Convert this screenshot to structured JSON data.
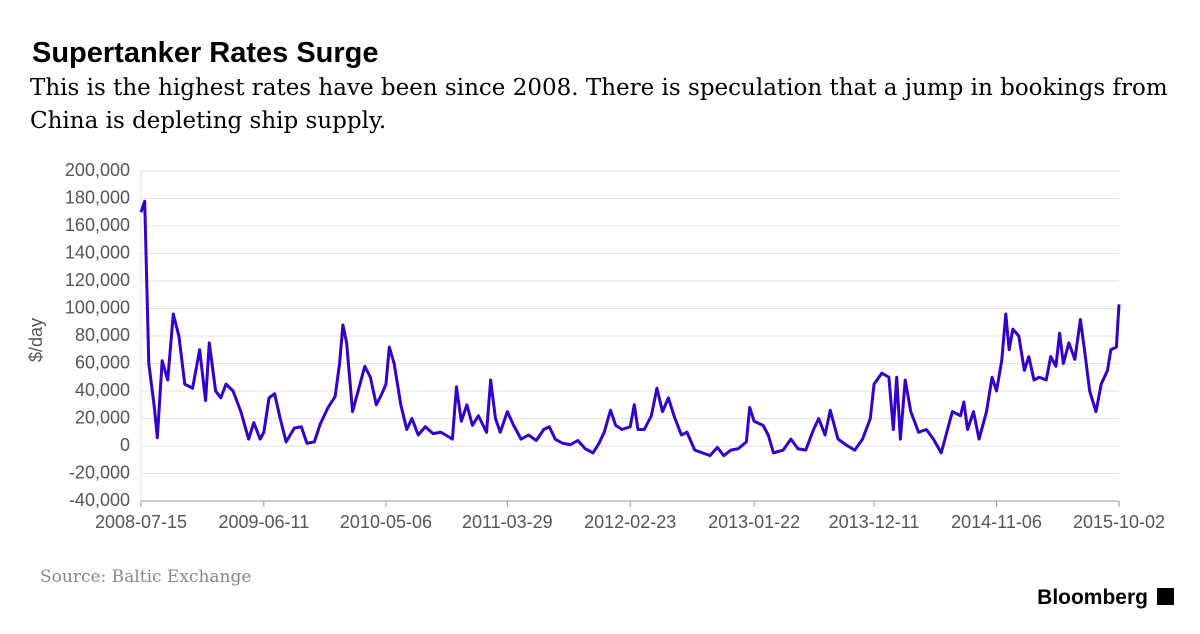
{
  "chart_data": {
    "type": "line",
    "title": "Supertanker Rates Surge",
    "subtitle": "This is the highest rates have been since 2008. There is speculation that a jump in bookings from China is depleting ship supply.",
    "y_label": "$/day",
    "source": "Source: Baltic Exchange",
    "brand": "Bloomberg",
    "color": "#3300cc",
    "grid": true,
    "x": [
      "2008-07-15",
      "2008-07-25",
      "2008-08-05",
      "2008-08-20",
      "2008-08-28",
      "2008-09-10",
      "2008-09-25",
      "2008-10-10",
      "2008-10-25",
      "2008-11-10",
      "2008-12-01",
      "2008-12-20",
      "2009-01-05",
      "2009-01-15",
      "2009-02-01",
      "2009-02-15",
      "2009-03-01",
      "2009-03-20",
      "2009-04-10",
      "2009-05-01",
      "2009-05-15",
      "2009-06-01",
      "2009-06-11",
      "2009-06-25",
      "2009-07-10",
      "2009-07-25",
      "2009-08-10",
      "2009-09-01",
      "2009-09-20",
      "2009-10-05",
      "2009-10-25",
      "2009-11-10",
      "2009-12-01",
      "2009-12-20",
      "2010-01-01",
      "2010-01-10",
      "2010-01-20",
      "2010-02-05",
      "2010-02-20",
      "2010-03-10",
      "2010-03-25",
      "2010-04-10",
      "2010-04-25",
      "2010-05-06",
      "2010-05-15",
      "2010-05-28",
      "2010-06-15",
      "2010-07-01",
      "2010-07-15",
      "2010-08-01",
      "2010-08-20",
      "2010-09-10",
      "2010-10-01",
      "2010-10-20",
      "2010-11-01",
      "2010-11-12",
      "2010-11-25",
      "2010-12-10",
      "2010-12-25",
      "2011-01-10",
      "2011-02-01",
      "2011-02-12",
      "2011-02-25",
      "2011-03-10",
      "2011-03-29",
      "2011-04-15",
      "2011-05-05",
      "2011-05-25",
      "2011-06-15",
      "2011-07-05",
      "2011-07-20",
      "2011-08-05",
      "2011-08-25",
      "2011-09-15",
      "2011-10-05",
      "2011-10-25",
      "2011-11-15",
      "2011-12-01",
      "2011-12-15",
      "2012-01-01",
      "2012-01-15",
      "2012-02-01",
      "2012-02-23",
      "2012-03-05",
      "2012-03-15",
      "2012-04-01",
      "2012-04-20",
      "2012-05-05",
      "2012-05-20",
      "2012-06-05",
      "2012-06-20",
      "2012-07-10",
      "2012-07-25",
      "2012-08-15",
      "2012-09-05",
      "2012-09-25",
      "2012-10-15",
      "2012-11-01",
      "2012-11-20",
      "2012-12-10",
      "2013-01-01",
      "2013-01-10",
      "2013-01-22",
      "2013-02-15",
      "2013-03-01",
      "2013-03-15",
      "2013-04-10",
      "2013-05-01",
      "2013-05-20",
      "2013-06-10",
      "2013-07-01",
      "2013-07-15",
      "2013-08-01",
      "2013-08-15",
      "2013-09-05",
      "2013-10-01",
      "2013-10-20",
      "2013-11-10",
      "2013-12-01",
      "2013-12-11",
      "2014-01-01",
      "2014-01-20",
      "2014-02-01",
      "2014-02-10",
      "2014-02-20",
      "2014-03-05",
      "2014-03-20",
      "2014-04-10",
      "2014-05-01",
      "2014-05-20",
      "2014-06-10",
      "2014-06-25",
      "2014-07-10",
      "2014-08-01",
      "2014-08-10",
      "2014-08-20",
      "2014-09-05",
      "2014-09-20",
      "2014-10-10",
      "2014-10-25",
      "2014-11-06",
      "2014-11-20",
      "2014-12-01",
      "2014-12-10",
      "2014-12-20",
      "2015-01-05",
      "2015-01-20",
      "2015-02-01",
      "2015-02-15",
      "2015-03-01",
      "2015-03-20",
      "2015-04-01",
      "2015-04-15",
      "2015-04-25",
      "2015-05-05",
      "2015-05-20",
      "2015-06-05",
      "2015-06-20",
      "2015-07-01",
      "2015-07-15",
      "2015-08-01",
      "2015-08-15",
      "2015-09-01",
      "2015-09-10",
      "2015-09-25",
      "2015-10-02"
    ],
    "values": [
      170000,
      178000,
      60000,
      28000,
      6000,
      62000,
      48000,
      96000,
      80000,
      45000,
      42000,
      70000,
      33000,
      75000,
      40000,
      35000,
      45000,
      40000,
      25000,
      5000,
      17000,
      5000,
      10000,
      35000,
      38000,
      20000,
      3000,
      13000,
      14000,
      2000,
      3000,
      16000,
      28000,
      36000,
      60000,
      88000,
      75000,
      25000,
      40000,
      58000,
      50000,
      30000,
      38000,
      45000,
      72000,
      60000,
      30000,
      12000,
      20000,
      8000,
      14000,
      9000,
      10000,
      7000,
      5000,
      43000,
      18000,
      30000,
      15000,
      22000,
      10000,
      48000,
      20000,
      10000,
      25000,
      15000,
      5000,
      8000,
      4000,
      12000,
      14000,
      5000,
      2000,
      1000,
      4000,
      -2000,
      -5000,
      2000,
      10000,
      26000,
      15000,
      12000,
      14000,
      30000,
      12000,
      12000,
      22000,
      42000,
      25000,
      35000,
      22000,
      8000,
      10000,
      -3000,
      -5000,
      -7000,
      -1000,
      -7000,
      -3000,
      -2000,
      3000,
      28000,
      18000,
      15000,
      8000,
      -5000,
      -3000,
      5000,
      -2000,
      -3000,
      12000,
      20000,
      8000,
      26000,
      5000,
      0,
      -3000,
      5000,
      20000,
      45000,
      53000,
      50000,
      12000,
      50000,
      5000,
      48000,
      25000,
      10000,
      12000,
      5000,
      -5000,
      10000,
      25000,
      22000,
      32000,
      12000,
      25000,
      5000,
      25000,
      50000,
      40000,
      62000,
      96000,
      70000,
      85000,
      80000,
      55000,
      65000,
      48000,
      50000,
      48000,
      65000,
      58000,
      82000,
      60000,
      75000,
      63000,
      92000,
      70000,
      40000,
      25000,
      45000,
      55000,
      70000,
      72000,
      103000
    ],
    "xlim": [
      "2008-07-15",
      "2015-10-02"
    ],
    "xticks": [
      "2008-07-15",
      "2009-06-11",
      "2010-05-06",
      "2011-03-29",
      "2012-02-23",
      "2013-01-22",
      "2013-12-11",
      "2014-11-06",
      "2015-10-02"
    ],
    "ylim": [
      -40000,
      200000
    ],
    "yticks": [
      {
        "value": -40000,
        "label": "-40,000"
      },
      {
        "value": -20000,
        "label": "-20,000"
      },
      0,
      {
        "value": 20000,
        "label": "20,000"
      },
      {
        "value": 40000,
        "label": "40,000"
      },
      {
        "value": 60000,
        "label": "60,000"
      },
      {
        "value": 80000,
        "label": "80,000"
      },
      {
        "value": 100000,
        "label": "100,000"
      },
      {
        "value": 120000,
        "label": "120,000"
      },
      {
        "value": 140000,
        "label": "140,000"
      },
      {
        "value": 160000,
        "label": "160,000"
      },
      {
        "value": 180000,
        "label": "180,000"
      },
      {
        "value": 200000,
        "label": "200,000"
      }
    ]
  }
}
